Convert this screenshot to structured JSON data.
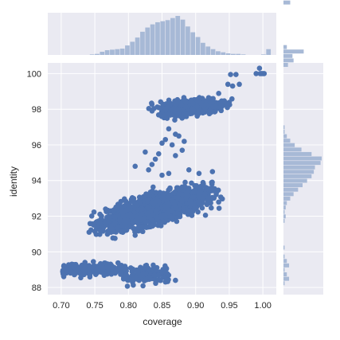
{
  "chart_data": {
    "type": "scatter",
    "title": "",
    "xlabel": "coverage",
    "ylabel": "identity",
    "xlim": [
      0.68,
      1.02
    ],
    "ylim": [
      87.6,
      100.6
    ],
    "xticks": [
      "0.70",
      "0.75",
      "0.80",
      "0.85",
      "0.90",
      "0.95",
      "1.00"
    ],
    "yticks": [
      "88",
      "90",
      "92",
      "94",
      "96",
      "98",
      "100"
    ],
    "grid": true,
    "marginal": "histograms-top-right",
    "colors": {
      "point": "#4c72b0",
      "hist": "#a7b9d6",
      "panel_bg": "#eaeaf2",
      "grid": "#ffffff"
    },
    "clusters": [
      {
        "name": "",
        "x_range": [
          0.75,
          0.93
        ],
        "y_range": [
          91.0,
          93.8
        ],
        "density": "very high"
      },
      {
        "name": "",
        "x_range": [
          0.84,
          0.95
        ],
        "y_range": [
          97.6,
          98.7
        ],
        "density": "high"
      },
      {
        "name": "",
        "x_range": [
          0.7,
          0.86
        ],
        "y_range": [
          88.3,
          89.3
        ],
        "density": "medium"
      },
      {
        "name": "",
        "x_range": [
          0.79,
          0.9
        ],
        "y_range": [
          94.0,
          97.2
        ],
        "density": "sparse"
      }
    ],
    "points": [
      [
        1.0,
        100.0
      ],
      [
        0.996,
        100.0
      ],
      [
        1.002,
        100.0
      ],
      [
        0.998,
        100.0
      ],
      [
        0.99,
        100.0
      ],
      [
        0.96,
        99.95
      ],
      [
        0.952,
        99.95
      ],
      [
        0.955,
        99.3
      ],
      [
        0.948,
        99.4
      ],
      [
        0.965,
        99.4
      ],
      [
        0.995,
        100.3
      ],
      [
        0.86,
        96.9
      ],
      [
        0.87,
        96.6
      ],
      [
        0.875,
        96.5
      ],
      [
        0.883,
        96.2
      ],
      [
        0.88,
        95.7
      ],
      [
        0.85,
        96.1
      ],
      [
        0.855,
        96.3
      ],
      [
        0.865,
        96.0
      ],
      [
        0.825,
        95.6
      ],
      [
        0.87,
        95.4
      ],
      [
        0.84,
        95.2
      ],
      [
        0.845,
        95.5
      ],
      [
        0.81,
        94.8
      ],
      [
        0.83,
        94.6
      ],
      [
        0.85,
        94.3
      ],
      [
        0.86,
        94.4
      ],
      [
        0.89,
        94.6
      ],
      [
        0.905,
        94.4
      ],
      [
        0.925,
        94.5
      ],
      [
        0.835,
        94.9
      ],
      [
        0.76,
        92.0
      ],
      [
        0.765,
        91.6
      ],
      [
        0.758,
        91.2
      ],
      [
        0.77,
        91.7
      ],
      [
        0.775,
        91.3
      ],
      [
        0.766,
        92.4
      ],
      [
        0.87,
        88.4
      ],
      [
        0.845,
        88.7
      ]
    ],
    "top_hist": {
      "bin_start": 0.69,
      "bin_width": 0.0075,
      "counts": [
        0,
        0,
        0,
        0,
        0,
        0,
        0,
        1,
        2,
        6,
        9,
        10,
        11,
        12,
        18,
        25,
        33,
        44,
        52,
        58,
        62,
        64,
        66,
        70,
        74,
        67,
        54,
        43,
        34,
        23,
        16,
        11,
        7,
        5,
        3,
        2,
        2,
        1,
        0,
        0,
        0,
        1,
        11
      ]
    },
    "right_hist": {
      "bin_start": 87.6,
      "bin_width": 0.25,
      "counts": [
        0,
        0,
        1,
        5,
        3,
        1,
        5,
        3,
        1,
        0,
        1,
        0,
        0,
        0,
        0,
        0,
        1,
        2,
        1,
        2,
        3,
        6,
        9,
        13,
        17,
        21,
        25,
        27,
        28,
        33,
        34,
        25,
        16,
        10,
        6,
        3,
        1,
        1,
        0,
        0,
        0,
        0,
        0,
        0,
        0,
        0,
        0,
        0,
        0,
        0,
        0,
        4,
        9,
        8,
        18,
        3,
        0,
        0,
        0,
        0,
        0,
        0,
        0,
        0,
        0,
        6,
        0,
        0
      ]
    }
  }
}
